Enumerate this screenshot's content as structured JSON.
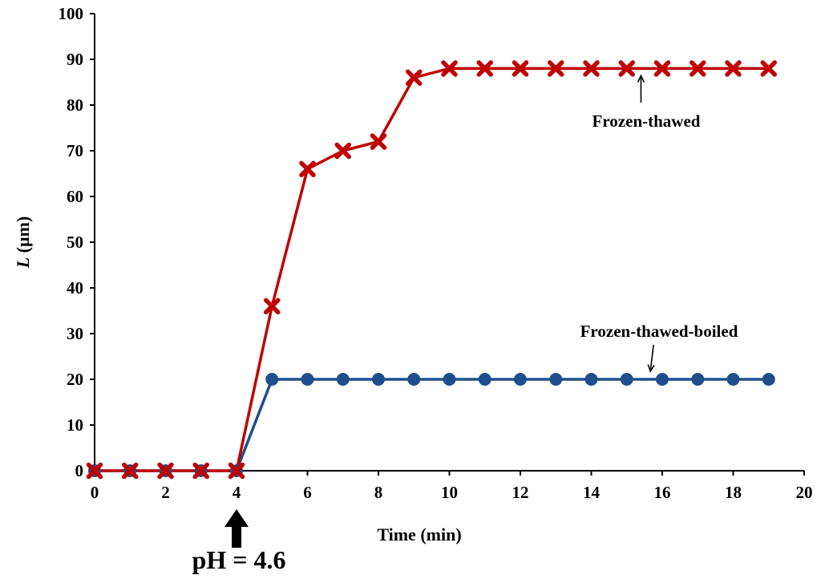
{
  "chart_data": {
    "type": "line",
    "xlabel": "Time (min)",
    "ylabel_italic": "L",
    "ylabel_rest": " (µm)",
    "xlim": [
      0,
      20
    ],
    "ylim": [
      0,
      100
    ],
    "xticks": [
      0,
      2,
      4,
      6,
      8,
      10,
      12,
      14,
      16,
      18,
      20
    ],
    "yticks": [
      0,
      10,
      20,
      30,
      40,
      50,
      60,
      70,
      80,
      90,
      100
    ],
    "grid": false,
    "series": [
      {
        "name": "Frozen-thawed",
        "color": "#c00000",
        "marker": "x",
        "x": [
          0,
          1,
          2,
          3,
          4,
          5,
          6,
          7,
          8,
          9,
          10,
          11,
          12,
          13,
          14,
          15,
          16,
          17,
          18,
          19
        ],
        "values": [
          0,
          0,
          0,
          0,
          0,
          36,
          66,
          70,
          72,
          86,
          88,
          88,
          88,
          88,
          88,
          88,
          88,
          88,
          88,
          88
        ]
      },
      {
        "name": "Frozen-thawed-boiled",
        "color": "#1f4e8c",
        "marker": "circle",
        "x": [
          0,
          1,
          2,
          3,
          4,
          5,
          6,
          7,
          8,
          9,
          10,
          11,
          12,
          13,
          14,
          15,
          16,
          17,
          18,
          19
        ],
        "values": [
          0,
          0,
          0,
          0,
          0,
          20,
          20,
          20,
          20,
          20,
          20,
          20,
          20,
          20,
          20,
          20,
          20,
          20,
          20,
          20
        ]
      }
    ],
    "annotations": [
      {
        "text": "Frozen-thawed",
        "points_to": {
          "x": 15.4,
          "y": 88
        }
      },
      {
        "text": "Frozen-thawed-boiled",
        "points_to": {
          "x": 15.8,
          "y": 20
        }
      },
      {
        "text": "pH = 4.6",
        "points_to": {
          "x": 4,
          "y": 0
        }
      }
    ]
  }
}
